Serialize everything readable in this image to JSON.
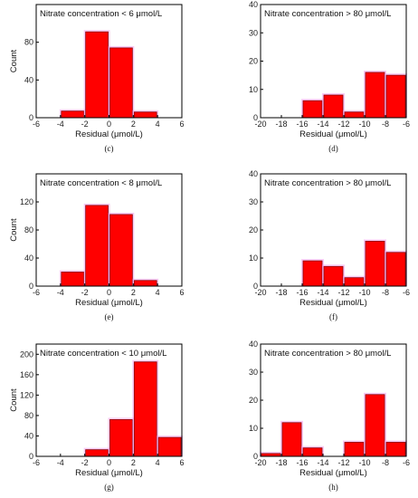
{
  "chart_data": [
    {
      "panel": "(c)",
      "type": "bar",
      "title": "Nitrate concentration < 6 μmol/L",
      "xlabel": "Residual (μmol/L)",
      "ylabel": "Count",
      "xlim": [
        -6,
        6
      ],
      "xticks": [
        "-6",
        "-4",
        "-2",
        "0",
        "2",
        "4",
        "6"
      ],
      "ylim": [
        0,
        120
      ],
      "yticks": [
        "0",
        "40",
        "80"
      ],
      "bin_width": 2,
      "bins": [
        -3,
        -1,
        1,
        3
      ],
      "values": [
        7,
        91,
        74,
        6
      ]
    },
    {
      "panel": "(d)",
      "type": "bar",
      "title": "Nitrate concentration > 80 μmol/L",
      "xlabel": "Residual (μmol/L)",
      "ylabel": "",
      "xlim": [
        -20,
        -6
      ],
      "xticks": [
        "-20",
        "-18",
        "-16",
        "-14",
        "-12",
        "-10",
        "-8",
        "-6"
      ],
      "ylim": [
        0,
        40
      ],
      "yticks": [
        "0",
        "10",
        "20",
        "30",
        "40"
      ],
      "bin_width": 2,
      "bins": [
        -15,
        -13,
        -11,
        -9,
        -7
      ],
      "values": [
        6,
        8,
        2,
        16,
        15
      ]
    },
    {
      "panel": "(e)",
      "type": "bar",
      "title": "Nitrate concentration < 8 μmol/L",
      "xlabel": "Residual (μmol/L)",
      "ylabel": "Count",
      "xlim": [
        -6,
        6
      ],
      "xticks": [
        "-6",
        "-4",
        "-2",
        "0",
        "2",
        "4",
        "6"
      ],
      "ylim": [
        0,
        160
      ],
      "yticks": [
        "0",
        "40",
        "80",
        "120"
      ],
      "bin_width": 2,
      "bins": [
        -3,
        -1,
        1,
        3
      ],
      "values": [
        20,
        115,
        102,
        8
      ]
    },
    {
      "panel": "(f)",
      "type": "bar",
      "title": "Nitrate concentration > 80 μmol/L",
      "xlabel": "Residual (μmol/L)",
      "ylabel": "",
      "xlim": [
        -20,
        -6
      ],
      "xticks": [
        "-20",
        "-18",
        "-16",
        "-14",
        "-12",
        "-10",
        "-8",
        "-6"
      ],
      "ylim": [
        0,
        40
      ],
      "yticks": [
        "0",
        "10",
        "20",
        "30",
        "40"
      ],
      "bin_width": 2,
      "bins": [
        -15,
        -13,
        -11,
        -9,
        -7
      ],
      "values": [
        9,
        7,
        3,
        16,
        12
      ]
    },
    {
      "panel": "(g)",
      "type": "bar",
      "title": "Nitrate concentration < 10 μmol/L",
      "xlabel": "Residual (μmol/L)",
      "ylabel": "Count",
      "xlim": [
        -6,
        6
      ],
      "xticks": [
        "-6",
        "-4",
        "-2",
        "0",
        "2",
        "4",
        "6"
      ],
      "ylim": [
        0,
        220
      ],
      "yticks": [
        "0",
        "40",
        "80",
        "120",
        "160",
        "200"
      ],
      "bin_width": 2,
      "bins": [
        -1,
        1,
        3,
        5
      ],
      "values": [
        13,
        72,
        185,
        37
      ]
    },
    {
      "panel": "(h)",
      "type": "bar",
      "title": "Nitrate concentration > 80 μmol/L",
      "xlabel": "Residual (μmol/L)",
      "ylabel": "",
      "xlim": [
        -20,
        -6
      ],
      "xticks": [
        "-20",
        "-18",
        "-16",
        "-14",
        "-12",
        "-10",
        "-8",
        "-6"
      ],
      "ylim": [
        0,
        40
      ],
      "yticks": [
        "0",
        "10",
        "20",
        "30",
        "40"
      ],
      "bin_width": 2,
      "bins": [
        -19,
        -17,
        -15,
        -11,
        -9,
        -7
      ],
      "values": [
        1,
        12,
        3,
        5,
        22,
        5
      ]
    }
  ],
  "colors": {
    "bar_fill": "#ff0000",
    "bar_edge": "#8b0000",
    "bar_glow": "#f2a0ee",
    "axis": "#000000"
  }
}
